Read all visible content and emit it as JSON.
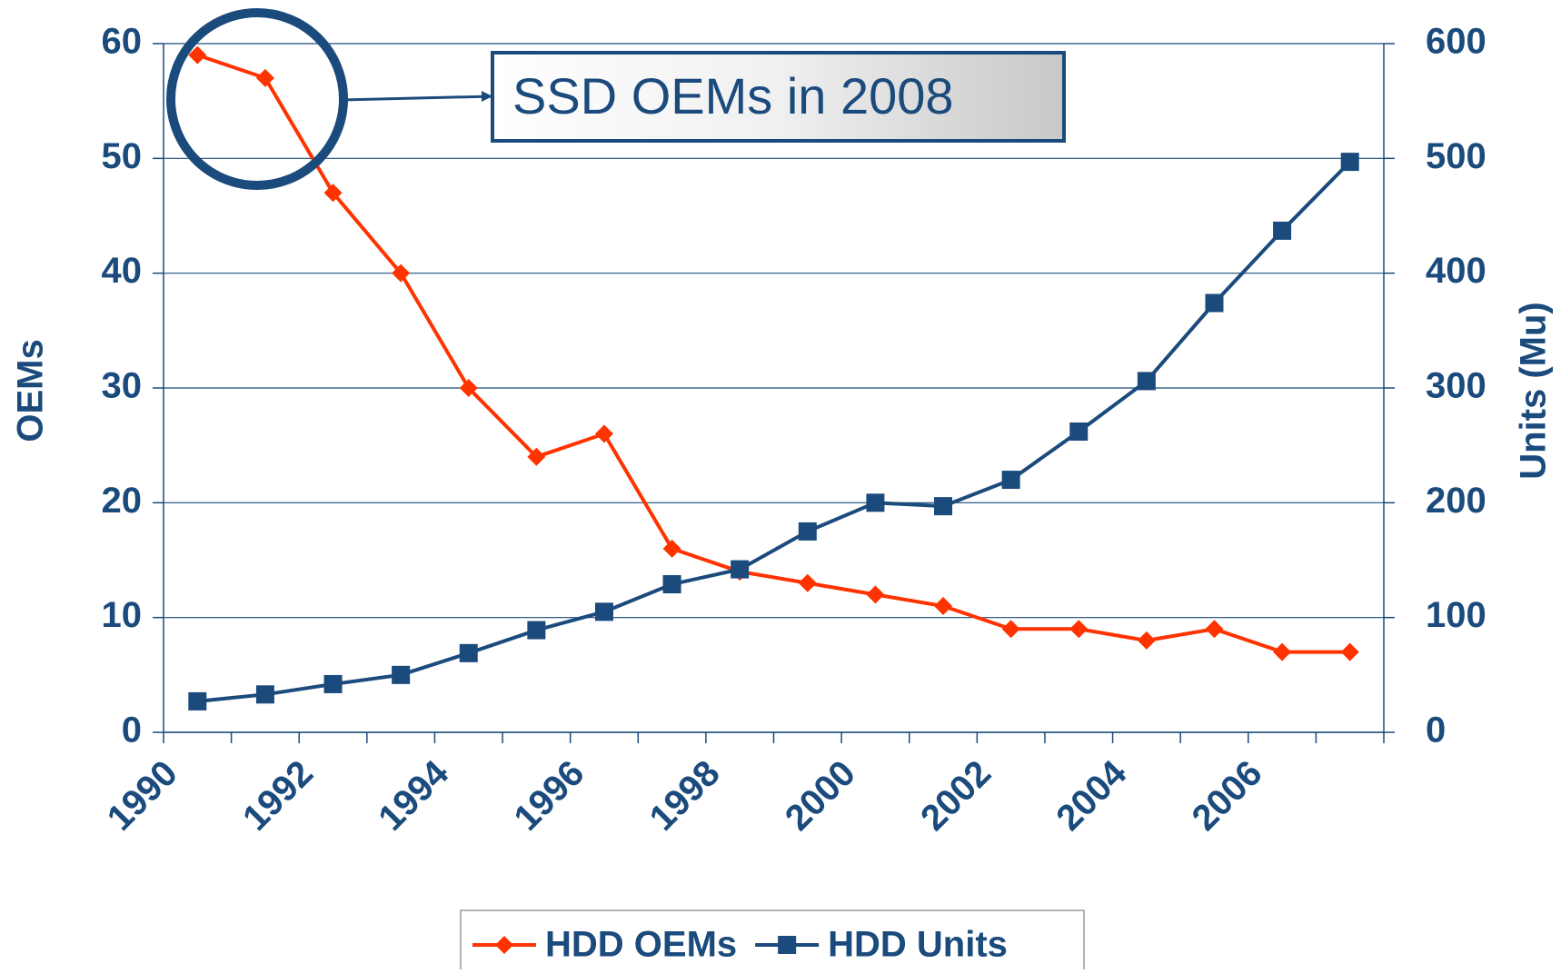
{
  "chart_data": {
    "type": "line",
    "annotation": "SSD OEMs in 2008",
    "categories": [
      "1990",
      null,
      "1992",
      null,
      "1994",
      null,
      "1996",
      null,
      "1998",
      null,
      "2000",
      null,
      "2002",
      null,
      "2004",
      null,
      "2006",
      null
    ],
    "ylabel": "OEMs",
    "y2label": "Units (Mu)",
    "ylim": [
      0,
      60
    ],
    "yticks": [
      0,
      10,
      20,
      30,
      40,
      50,
      60
    ],
    "y2lim": [
      0,
      600
    ],
    "y2ticks": [
      0,
      100,
      200,
      300,
      400,
      500,
      600
    ],
    "grid": true,
    "legend": "bottom",
    "series": [
      {
        "name": "HDD OEMs",
        "color": "#ff3300",
        "marker": "diamond",
        "values": [
          59,
          57,
          47,
          40,
          30,
          24,
          26,
          16,
          14,
          13,
          12,
          11,
          9,
          9,
          8,
          9,
          7,
          7
        ]
      },
      {
        "name": "HDD Units",
        "color": "#1b4a7c",
        "marker": "square",
        "axis": "y2",
        "values": [
          27,
          33,
          42,
          50,
          69,
          89,
          105,
          129,
          142,
          175,
          200,
          197,
          220,
          262,
          306,
          374,
          437,
          497
        ]
      }
    ]
  }
}
